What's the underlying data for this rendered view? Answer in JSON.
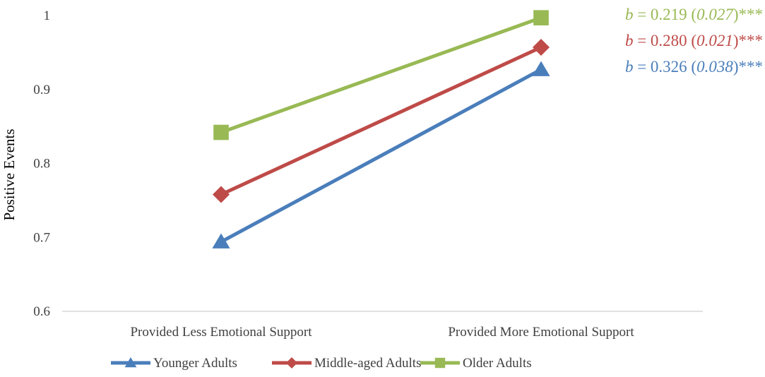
{
  "chart_data": {
    "type": "line",
    "title": "",
    "xlabel": "",
    "ylabel": "Positive Events",
    "ylim": [
      0.6,
      1.0
    ],
    "yticks": [
      "0.6",
      "0.7",
      "0.8",
      "0.9",
      "1"
    ],
    "grid": false,
    "legend_position": "bottom",
    "categories": [
      "Provided Less Emotional Support",
      "Provided More Emotional Support"
    ],
    "series": [
      {
        "name": "Younger Adults",
        "values": [
          0.694,
          0.927
        ],
        "color": "#4a7ebb",
        "marker": "triangle",
        "annotation": {
          "prefix": "b",
          "eq": " = 0.326 (",
          "se": "0.038",
          "suffix": ")***"
        }
      },
      {
        "name": "Middle-aged Adults",
        "values": [
          0.758,
          0.957
        ],
        "color": "#be4b48",
        "marker": "diamond",
        "annotation": {
          "prefix": "b",
          "eq": " = 0.280 (",
          "se": "0.021",
          "suffix": ")***"
        }
      },
      {
        "name": "Older Adults",
        "values": [
          0.842,
          0.997
        ],
        "color": "#98b954",
        "marker": "square",
        "annotation": {
          "prefix": "b",
          "eq": " = 0.219 (",
          "se": "0.027",
          "suffix": ")***"
        }
      }
    ]
  }
}
